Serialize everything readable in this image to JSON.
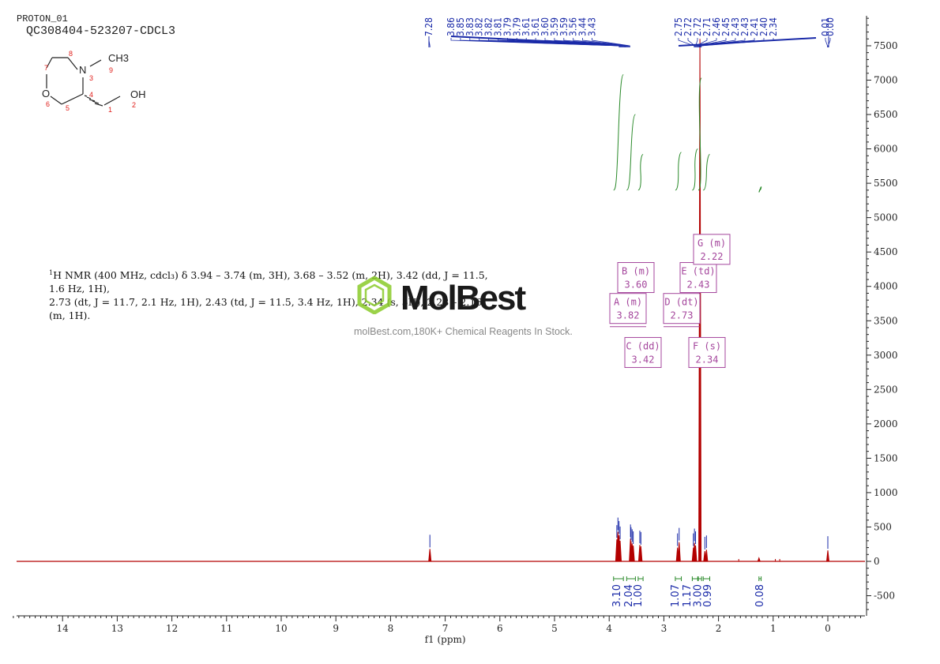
{
  "header": {
    "sample_name": "PROTON_01",
    "title": "QC308404-523207-CDCL3"
  },
  "structure": {
    "atoms": {
      "n": "N",
      "o": "O",
      "methyl": "CH3",
      "hydroxyl": "OH"
    },
    "numbers": [
      "1",
      "2",
      "3",
      "4",
      "5",
      "6",
      "7",
      "8",
      "9"
    ]
  },
  "nmr_description": {
    "nucleus_sup": "1",
    "line1": "H NMR (400 MHz, cdcl₃) δ 3.94 – 3.74 (m, 3H), 3.68 – 3.52 (m, 2H), 3.42 (dd, J = 11.5, 1.6 Hz, 1H),",
    "line2": "2.73 (dt, J = 11.7, 2.1 Hz, 1H), 2.43 (td, J = 11.5, 3.4 Hz, 1H), 2.34 (s, 3H), 2.28 – 2.16 (m, 1H)."
  },
  "watermark": {
    "logo": "MolBest",
    "tagline": "molBest.com,180K+ Chemical Reagents In Stock."
  },
  "colors": {
    "spectrum": "#b30000",
    "peak_labels": "#1a2aa8",
    "integral": "#2a8a2a",
    "multiplet_box": "#a4459c",
    "axis": "#222222",
    "watermark_green": "#8acb2a"
  },
  "chart_data": {
    "type": "line",
    "xlabel": "f1 (ppm)",
    "xlim": [
      14.9,
      -0.6
    ],
    "x_reversed": true,
    "ylim": [
      -750,
      7950
    ],
    "x_ticks": [
      14,
      13,
      12,
      11,
      10,
      9,
      8,
      7,
      6,
      5,
      4,
      3,
      2,
      1,
      0
    ],
    "y_ticks": [
      -500,
      0,
      500,
      1000,
      1500,
      2000,
      2500,
      3000,
      3500,
      4000,
      4500,
      5000,
      5500,
      6000,
      6500,
      7000,
      7500
    ],
    "peak_labels": [
      "7.28",
      "3.86",
      "3.85",
      "3.83",
      "3.82",
      "3.82",
      "3.81",
      "3.79",
      "3.79",
      "3.61",
      "3.61",
      "3.60",
      "3.59",
      "3.59",
      "3.56",
      "3.44",
      "3.43",
      "2.75",
      "2.72",
      "2.72",
      "2.71",
      "2.46",
      "2.45",
      "2.43",
      "2.43",
      "2.41",
      "2.40",
      "2.34",
      "0.01",
      "0.00"
    ],
    "peak_label_groups": [
      {
        "shift": 7.28,
        "labels": [
          "7.28"
        ]
      },
      {
        "shift": 3.72,
        "labels": [
          "3.86",
          "3.85",
          "3.83",
          "3.82",
          "3.82",
          "3.81",
          "3.79",
          "3.79",
          "3.61",
          "3.61",
          "3.60",
          "3.59",
          "3.59",
          "3.56",
          "3.44",
          "3.43"
        ]
      },
      {
        "shift": 2.38,
        "labels": [
          "2.75",
          "2.72",
          "2.72",
          "2.71",
          "2.46",
          "2.45",
          "2.43",
          "2.43",
          "2.41",
          "2.40",
          "2.34"
        ]
      },
      {
        "shift": 0.0,
        "labels": [
          "0.01",
          "0.00"
        ]
      }
    ],
    "peaks": [
      {
        "ppm": 7.28,
        "height": 180
      },
      {
        "ppm": 3.86,
        "height": 320
      },
      {
        "ppm": 3.84,
        "height": 430
      },
      {
        "ppm": 3.82,
        "height": 380
      },
      {
        "ppm": 3.8,
        "height": 300
      },
      {
        "ppm": 3.61,
        "height": 330
      },
      {
        "ppm": 3.6,
        "height": 290
      },
      {
        "ppm": 3.58,
        "height": 260
      },
      {
        "ppm": 3.56,
        "height": 230
      },
      {
        "ppm": 3.44,
        "height": 240
      },
      {
        "ppm": 3.42,
        "height": 220
      },
      {
        "ppm": 2.75,
        "height": 200
      },
      {
        "ppm": 2.72,
        "height": 280
      },
      {
        "ppm": 2.46,
        "height": 200
      },
      {
        "ppm": 2.44,
        "height": 270
      },
      {
        "ppm": 2.42,
        "height": 230
      },
      {
        "ppm": 2.34,
        "height": 7600
      },
      {
        "ppm": 2.25,
        "height": 150
      },
      {
        "ppm": 2.22,
        "height": 170
      },
      {
        "ppm": 1.26,
        "height": 50
      },
      {
        "ppm": 0.0,
        "height": 160
      }
    ],
    "integrals": [
      {
        "from": 3.92,
        "to": 3.74,
        "value": "3.10",
        "curve_start": 5400,
        "curve_end": 7080
      },
      {
        "from": 3.68,
        "to": 3.52,
        "value": "2.04",
        "curve_start": 5400,
        "curve_end": 6500
      },
      {
        "from": 3.47,
        "to": 3.38,
        "value": "1.00",
        "curve_start": 5400,
        "curve_end": 5920
      },
      {
        "from": 2.79,
        "to": 2.68,
        "value": "1.07",
        "curve_start": 5400,
        "curve_end": 5950
      },
      {
        "from": 2.48,
        "to": 2.38,
        "value": "1.17",
        "curve_start": 5400,
        "curve_end": 6000
      },
      {
        "from": 2.37,
        "to": 2.31,
        "value": "3.00",
        "curve_start": 5400,
        "curve_end": 7030
      },
      {
        "from": 2.28,
        "to": 2.16,
        "value": "0.99",
        "curve_start": 5400,
        "curve_end": 5920
      },
      {
        "from": 1.26,
        "to": 1.22,
        "value": "0.08",
        "curve_start": 5390,
        "curve_end": 5430
      }
    ],
    "multiplets": [
      {
        "letter": "A",
        "type": "m",
        "shift": "3.82",
        "ppm": 3.82,
        "label_y": 3690
      },
      {
        "letter": "B",
        "type": "m",
        "shift": "3.60",
        "ppm": 3.6,
        "label_y": 4140
      },
      {
        "letter": "C",
        "type": "dd",
        "shift": "3.42",
        "ppm": 3.42,
        "label_y": 3050
      },
      {
        "letter": "D",
        "type": "dt",
        "shift": "2.73",
        "ppm": 2.73,
        "label_y": 3690
      },
      {
        "letter": "E",
        "type": "td",
        "shift": "2.43",
        "ppm": 2.43,
        "label_y": 4140
      },
      {
        "letter": "F",
        "type": "s",
        "shift": "2.34",
        "ppm": 2.34,
        "label_y": 3050
      },
      {
        "letter": "G",
        "type": "m",
        "shift": "2.22",
        "ppm": 2.22,
        "label_y": 4550
      }
    ]
  }
}
